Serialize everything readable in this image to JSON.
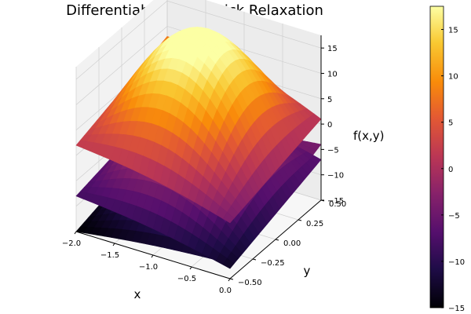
{
  "chart_data": {
    "type": "surface3d",
    "title": "Differentiable McCormick Relaxation",
    "xlabel": "x",
    "ylabel": "y",
    "zlabel": "f(x,y)",
    "xlim": [
      -2.0,
      0.0
    ],
    "ylim": [
      -0.5,
      0.5
    ],
    "zlim": [
      -15,
      17.5
    ],
    "x_ticks": [
      "−2.0",
      "−1.5",
      "−1.0",
      "−0.5",
      "0.0"
    ],
    "x_tick_values": [
      -2.0,
      -1.5,
      -1.0,
      -0.5,
      0.0
    ],
    "y_ticks": [
      "−0.50",
      "−0.25",
      "0.00",
      "0.25",
      "0.50"
    ],
    "y_tick_values": [
      -0.5,
      -0.25,
      0.0,
      0.25,
      0.5
    ],
    "z_ticks": [
      "−15",
      "−10",
      "−5",
      "0",
      "5",
      "10",
      "15"
    ],
    "z_tick_values": [
      -15,
      -10,
      -5,
      0,
      5,
      10,
      15
    ],
    "colormap": "inferno",
    "colorbar_ticks": [
      "−15",
      "−10",
      "−5",
      "0",
      "5",
      "10",
      "15"
    ],
    "colorbar_tick_values": [
      -15,
      -10,
      -5,
      0,
      5,
      10,
      15
    ],
    "colorbar_range": [
      -15,
      17.5
    ],
    "series": [
      {
        "role": "upper",
        "peak": 17.5,
        "x_corner": [
          -2.0,
          0.0
        ],
        "corner_values": [
          2.0,
          -4.0,
          8.0,
          1.0
        ]
      },
      {
        "role": "middle",
        "peak": 4.0,
        "x_corner": [
          -2.0,
          0.0
        ],
        "corner_values": [
          -8.0,
          -13.0,
          -4.0,
          -7.0
        ]
      },
      {
        "role": "lower",
        "peak": -3.0,
        "x_corner": [
          -2.0,
          0.0
        ],
        "corner_values": [
          -15.0,
          -12.0,
          -10.0,
          -4.0
        ]
      }
    ],
    "grid": true,
    "colorbar_placement": "right"
  }
}
